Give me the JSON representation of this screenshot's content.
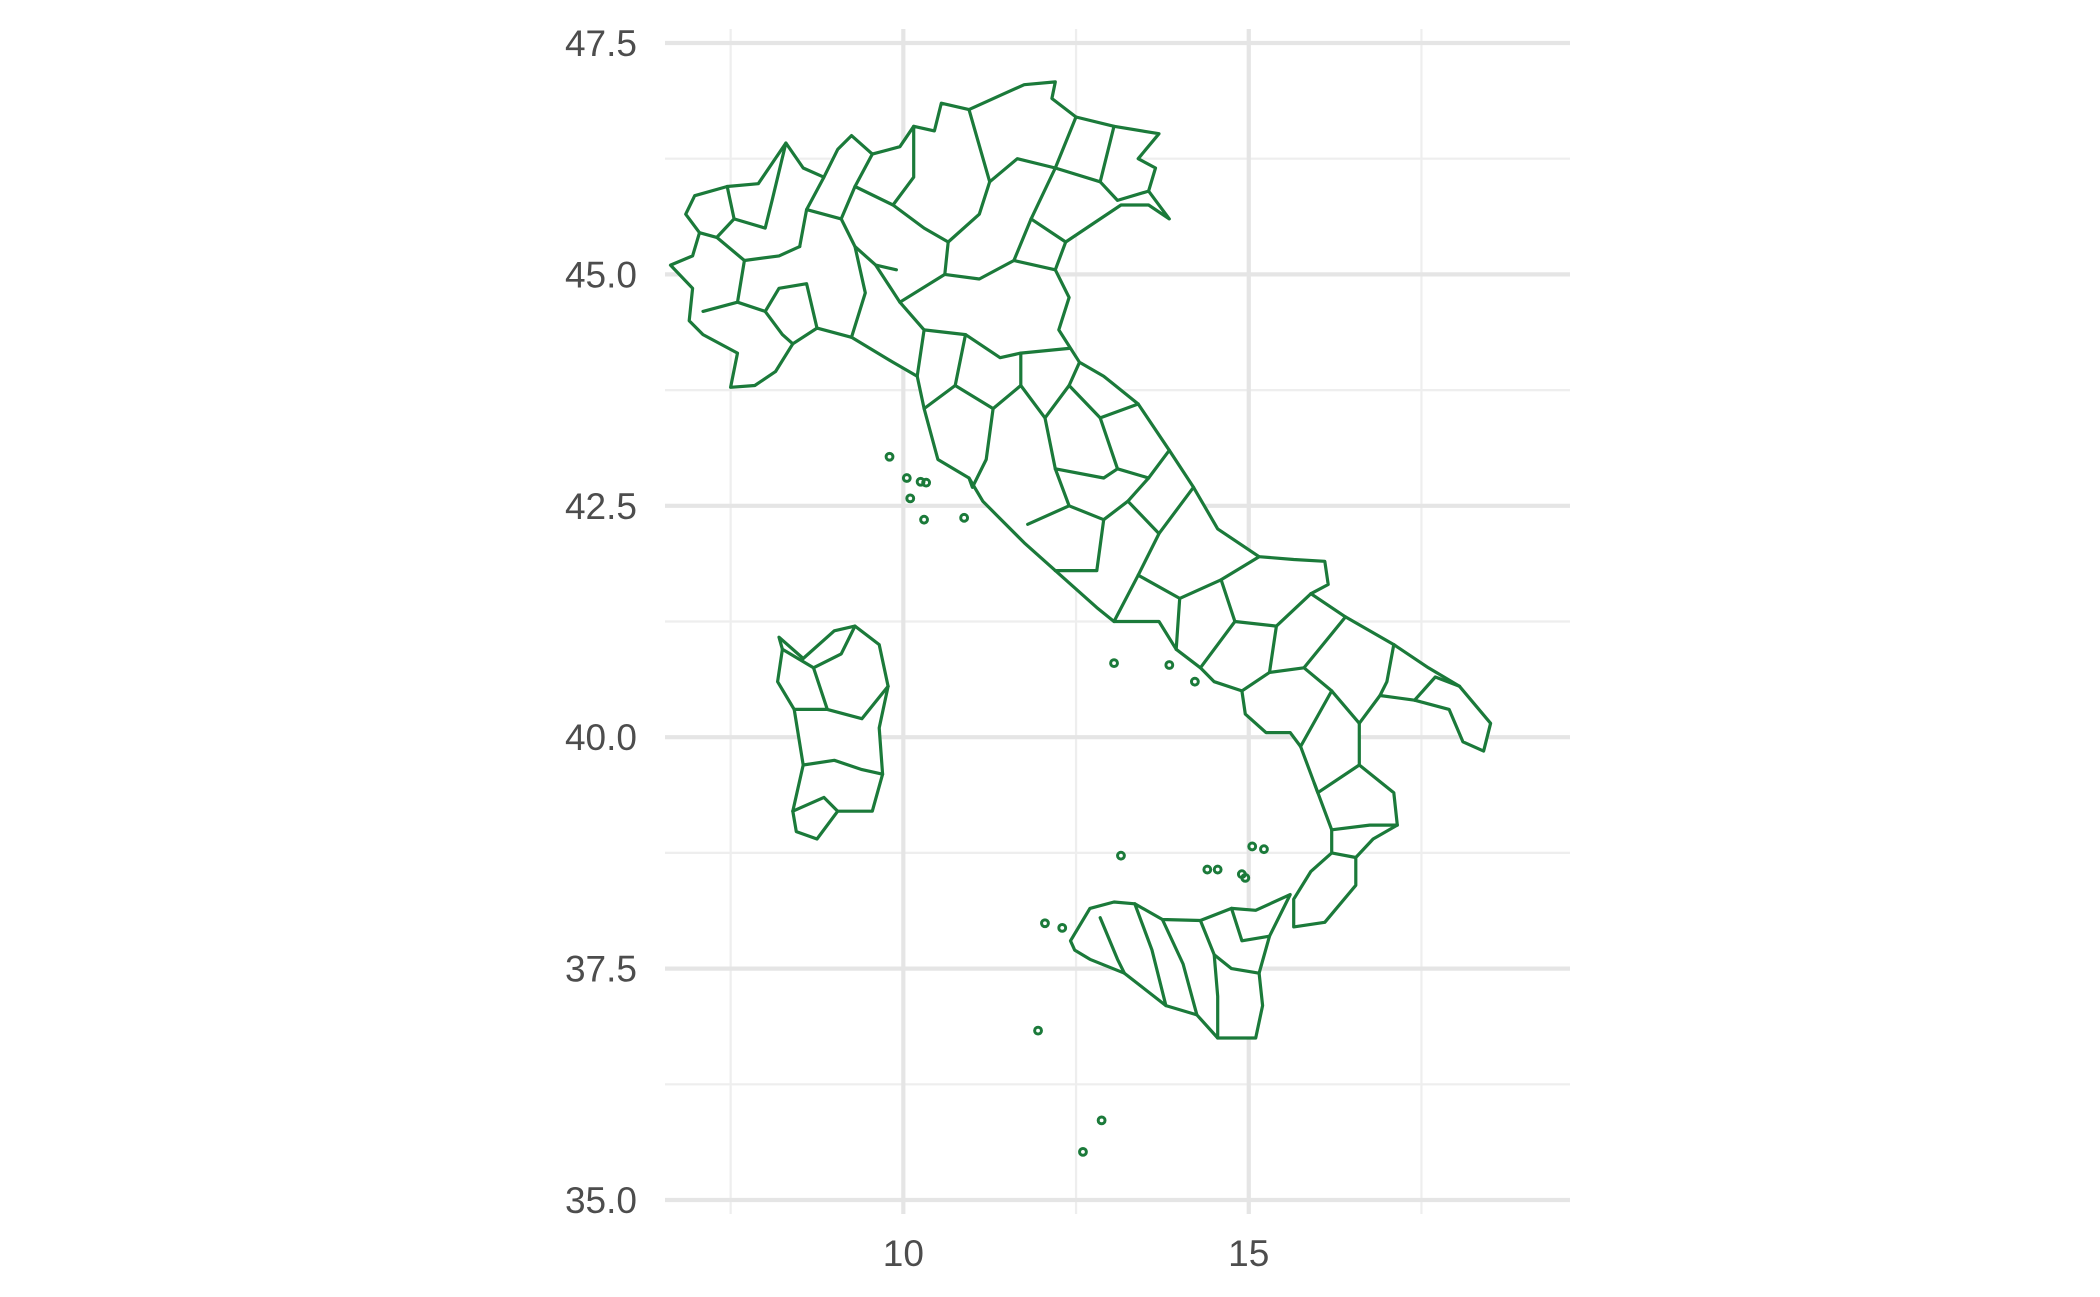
{
  "chart_data": {
    "type": "map",
    "title": "",
    "xlabel": "",
    "ylabel": "",
    "xlim": [
      6.5,
      19.5
    ],
    "ylim": [
      35.0,
      47.5
    ],
    "grid": true,
    "x_ticks": [
      {
        "value": 10,
        "label": "10"
      },
      {
        "value": 15,
        "label": "15"
      }
    ],
    "x_minor_ticks": [
      7.5,
      12.5,
      17.5
    ],
    "y_ticks": [
      {
        "value": 35.0,
        "label": "35.0"
      },
      {
        "value": 37.5,
        "label": "37.5"
      },
      {
        "value": 40.0,
        "label": "40.0"
      },
      {
        "value": 42.5,
        "label": "42.5"
      },
      {
        "value": 45.0,
        "label": "45.0"
      },
      {
        "value": 47.5,
        "label": "47.5"
      }
    ],
    "y_minor_ticks": [
      36.25,
      38.75,
      41.25,
      43.75,
      46.25
    ],
    "border_color": "#1b7a3a",
    "regions_shown": "Italian provinces (outline only)"
  }
}
